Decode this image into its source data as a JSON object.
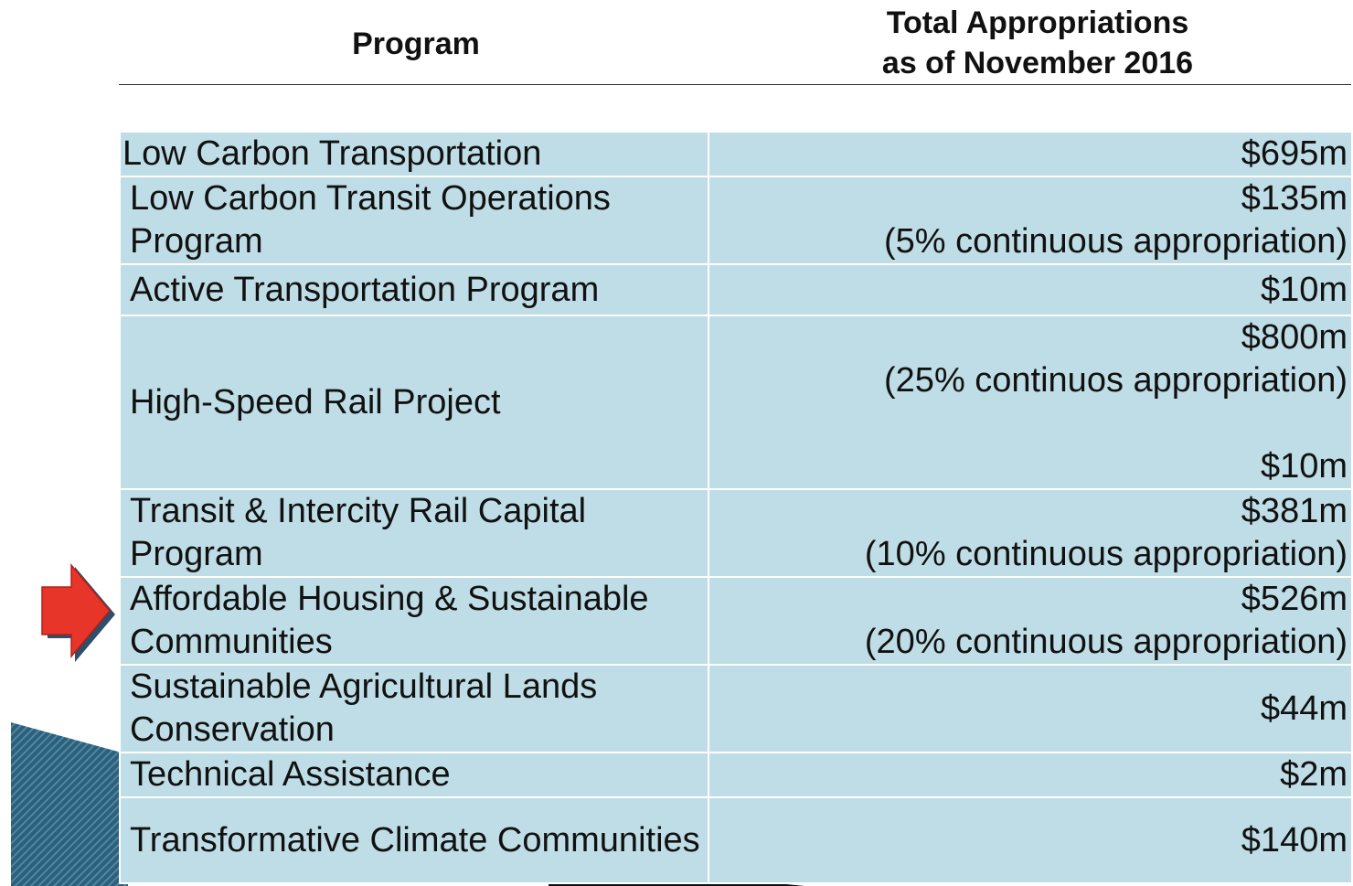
{
  "header": {
    "program": "Program",
    "amount": [
      "Total Appropriations",
      "as of November 2016"
    ]
  },
  "table": {
    "rows": [
      {
        "program": "Low Carbon Transportation",
        "amount": [
          "$695m"
        ]
      },
      {
        "program": "Low Carbon Transit Operations Program",
        "amount": [
          "$135m",
          "(5% continuous appropriation)"
        ]
      },
      {
        "program": "Active Transportation Program",
        "amount": [
          "$10m"
        ]
      },
      {
        "program": "High-Speed Rail Project",
        "amount": [
          "$800m",
          "(25% continuos appropriation)",
          "$10m"
        ]
      },
      {
        "program": "Transit & Intercity Rail Capital Program",
        "amount": [
          "$381m",
          "(10% continuous appropriation)"
        ]
      },
      {
        "program": "Affordable Housing & Sustainable Communities",
        "amount": [
          "$526m",
          "(20% continuous appropriation)"
        ]
      },
      {
        "program": "Sustainable Agricultural Lands Conservation",
        "amount": [
          "$44m"
        ]
      },
      {
        "program": "Technical Assistance",
        "amount": [
          "$2m"
        ]
      },
      {
        "program": "Transformative Climate Communities",
        "amount": [
          "$140m"
        ]
      }
    ]
  }
}
